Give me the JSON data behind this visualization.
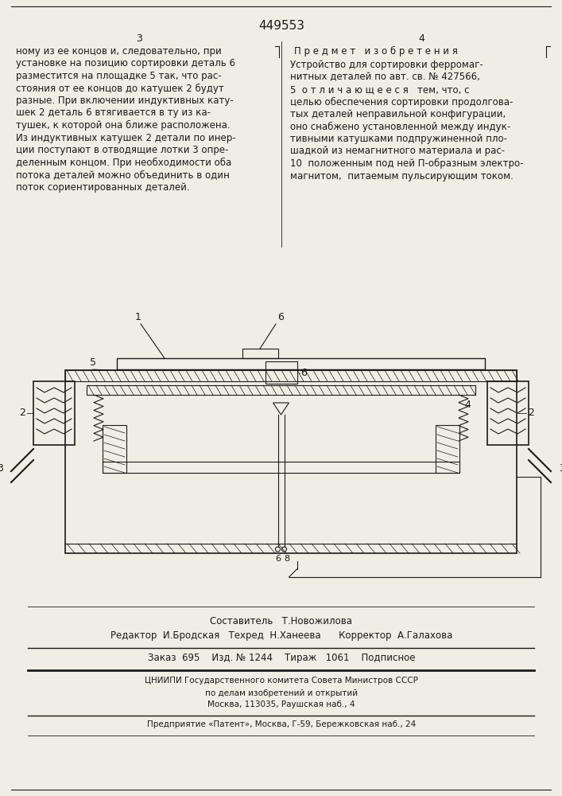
{
  "patent_number": "449553",
  "page_left": "3",
  "page_right": "4",
  "bg_color": "#f0ede4",
  "text_color": "#1a1a1a",
  "left_column_lines": [
    "ному из ее концов и, следовательно, при",
    "установке на позицию сортировки деталь 6",
    "разместится на площадке 5 так, что рас-",
    "стояния от ее концов до катушек 2 будут",
    "разные. При включении индуктивных кату-",
    "шек 2 деталь 6 втягивается в ту из ка-",
    "тушек, к которой она ближе расположена.",
    "Из индуктивных катушек 2 детали по инер-",
    "ции поступают в отводящие лотки 3 опре-",
    "деленным концом. При необходимости оба",
    "потока деталей можно объединить в один",
    "поток сориентированных деталей."
  ],
  "right_column_header": "П р е д м е т   и з о б р е т е н и я",
  "right_column_lines": [
    "Устройство для сортировки ферромаг-",
    "нитных деталей по авт. св. № 427566,",
    "5  о т л и ч а ю щ е е с я   тем, что, с",
    "целью обеспечения сортировки продолгова-",
    "тых деталей неправильной конфигурации,",
    "оно снабжено установленной между индук-",
    "тивными катушками подпружиненной пло-",
    "шадкой из немагнитного материала и рас-",
    "10  положенным под ней П-образным электро-",
    "магнитом,  питаемым пульсирующим током."
  ],
  "footer_lines": [
    "Составитель   Т.Новожилова",
    "Редактор  И.Бродская   Техред  Н.Ханеева      Корректор  А.Галахова",
    "Заказ  695    Изд. № 1244    Тираж   1061    Подписное",
    "ЦНИИПИ Государственного комитета Совета Министров СССР",
    "по делам изобретений и открытий",
    "Москва, 113035, Раушская наб., 4",
    "Предприятие «Патент», Москва, Г-59, Бережковская наб., 24"
  ]
}
